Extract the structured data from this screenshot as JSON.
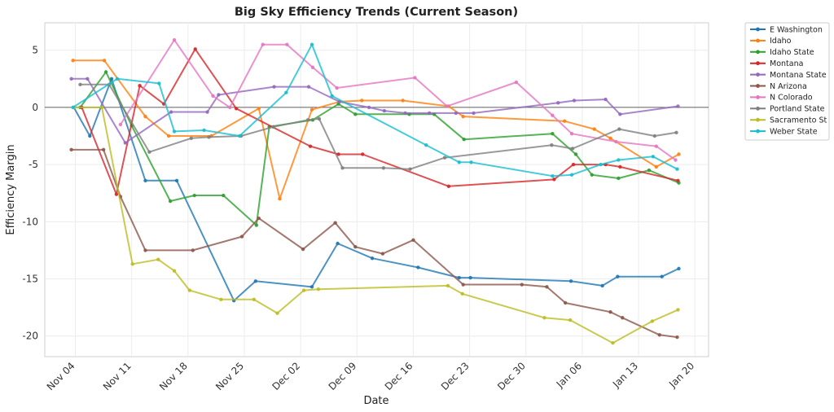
{
  "chart_data": {
    "type": "line",
    "title": "Big Sky Efficiency Trends (Current Season)",
    "xlabel": "Date",
    "ylabel": "Efficiency Margin",
    "x_ticks": [
      {
        "day": 3,
        "label": "Nov 04"
      },
      {
        "day": 10,
        "label": "Nov 11"
      },
      {
        "day": 17,
        "label": "Nov 18"
      },
      {
        "day": 24,
        "label": "Nov 25"
      },
      {
        "day": 31,
        "label": "Dec 02"
      },
      {
        "day": 38,
        "label": "Dec 09"
      },
      {
        "day": 45,
        "label": "Dec 16"
      },
      {
        "day": 52,
        "label": "Dec 23"
      },
      {
        "day": 59,
        "label": "Dec 30"
      },
      {
        "day": 66,
        "label": "Jan 06"
      },
      {
        "day": 73,
        "label": "Jan 13"
      },
      {
        "day": 80,
        "label": "Jan 20"
      }
    ],
    "y_ticks": [
      5,
      0,
      -5,
      -10,
      -15,
      -20
    ],
    "xlim": [
      -0.8,
      81.7
    ],
    "ylim": [
      -21.8,
      7.4
    ],
    "x_unit_note": "x values are days since Nov 01",
    "zero_line": true,
    "grid": true,
    "legend_position": "outside-right",
    "series": [
      {
        "name": "E Washington",
        "color": "#1f77b4",
        "x": [
          2.8,
          4.8,
          7.5,
          11.7,
          15.6,
          22.7,
          25.4,
          32.4,
          35.6,
          39.9,
          45.6,
          50.7,
          52.1,
          64.6,
          68.5,
          70.4,
          75.9,
          78.0
        ],
        "y": [
          0.0,
          -2.5,
          2.5,
          -6.4,
          -6.4,
          -16.9,
          -15.2,
          -15.7,
          -11.9,
          -13.2,
          -14.0,
          -14.9,
          -14.9,
          -15.2,
          -15.6,
          -14.8,
          -14.8,
          -14.1
        ]
      },
      {
        "name": "Idaho",
        "color": "#ff7f0e",
        "x": [
          2.7,
          6.6,
          11.7,
          14.6,
          19.9,
          25.8,
          28.4,
          32.4,
          35.8,
          38.6,
          43.7,
          49.4,
          51.2,
          63.8,
          67.5,
          69.5,
          75.2,
          78.0
        ],
        "y": [
          4.1,
          4.1,
          -0.8,
          -2.5,
          -2.5,
          -0.1,
          -8.0,
          -0.2,
          0.5,
          0.6,
          0.6,
          0.1,
          -0.8,
          -1.2,
          -1.9,
          -2.7,
          -5.2,
          -4.1
        ]
      },
      {
        "name": "Idaho State",
        "color": "#2ca02c",
        "x": [
          3.6,
          6.8,
          10.0,
          14.8,
          17.8,
          21.4,
          25.5,
          27.1,
          32.5,
          35.7,
          37.8,
          44.5,
          47.6,
          51.3,
          62.3,
          65.2,
          67.2,
          70.5,
          74.3,
          78.0
        ],
        "y": [
          0.0,
          3.1,
          -1.6,
          -8.2,
          -7.7,
          -7.7,
          -10.3,
          -1.7,
          -1.1,
          0.3,
          -0.6,
          -0.6,
          -0.6,
          -2.8,
          -2.3,
          -4.1,
          -5.9,
          -6.2,
          -5.5,
          -6.6
        ]
      },
      {
        "name": "Montana",
        "color": "#d62728",
        "x": [
          3.8,
          8.1,
          11.0,
          14.0,
          17.9,
          23.0,
          32.2,
          35.7,
          38.7,
          49.4,
          62.5,
          64.9,
          68.9,
          70.7,
          77.9
        ],
        "y": [
          0.0,
          -7.6,
          1.9,
          0.3,
          5.1,
          -0.1,
          -3.4,
          -4.1,
          -4.1,
          -6.9,
          -6.3,
          -5.0,
          -5.0,
          -5.2,
          -6.4
        ]
      },
      {
        "name": "Montana State",
        "color": "#9467bd",
        "x": [
          2.5,
          4.5,
          9.2,
          14.9,
          19.4,
          20.8,
          27.7,
          32.0,
          35.8,
          39.5,
          41.4,
          44.0,
          47.0,
          50.3,
          52.5,
          63.0,
          65.0,
          68.9,
          70.7,
          77.9
        ],
        "y": [
          2.5,
          2.5,
          -3.1,
          -0.4,
          -0.4,
          1.1,
          1.8,
          1.8,
          0.5,
          0.0,
          -0.3,
          -0.5,
          -0.5,
          -0.5,
          -0.5,
          0.4,
          0.6,
          0.7,
          -0.6,
          0.1
        ]
      },
      {
        "name": "N Arizona",
        "color": "#8c564b",
        "x": [
          2.5,
          6.5,
          8.6,
          11.7,
          17.6,
          23.7,
          25.8,
          31.3,
          35.3,
          37.8,
          41.2,
          45.0,
          51.2,
          58.5,
          61.6,
          63.9,
          69.5,
          71.0,
          75.6,
          77.8
        ],
        "y": [
          -3.7,
          -3.7,
          -7.8,
          -12.5,
          -12.5,
          -11.3,
          -9.7,
          -12.4,
          -10.1,
          -12.2,
          -12.8,
          -11.6,
          -15.5,
          -15.5,
          -15.7,
          -17.1,
          -17.9,
          -18.4,
          -19.9,
          -20.1
        ]
      },
      {
        "name": "N Colorado",
        "color": "#e377c2",
        "x": [
          8.6,
          15.3,
          20.1,
          22.2,
          26.3,
          29.3,
          32.5,
          35.5,
          45.2,
          49.2,
          57.8,
          62.3,
          64.7,
          70.2,
          75.2,
          77.6
        ],
        "y": [
          -1.5,
          5.9,
          1.0,
          0.0,
          5.5,
          5.5,
          3.5,
          1.7,
          2.6,
          0.1,
          2.2,
          -0.7,
          -2.3,
          -3.0,
          -3.4,
          -4.6
        ]
      },
      {
        "name": "Portland State",
        "color": "#7f7f7f",
        "x": [
          3.6,
          7.2,
          12.2,
          17.4,
          19.6,
          23.6,
          27.6,
          31.9,
          33.3,
          36.2,
          41.3,
          44.6,
          48.9,
          62.2,
          64.8,
          70.6,
          75.0,
          77.7
        ],
        "y": [
          2.0,
          2.0,
          -3.9,
          -2.7,
          -2.6,
          -2.5,
          -1.7,
          -1.1,
          -1.0,
          -5.3,
          -5.3,
          -5.4,
          -4.4,
          -3.3,
          -3.6,
          -1.9,
          -2.5,
          -2.2
        ]
      },
      {
        "name": "Sacramento St",
        "color": "#bcbd22",
        "x": [
          2.8,
          6.3,
          10.1,
          13.3,
          15.3,
          17.2,
          21.1,
          25.2,
          28.1,
          31.4,
          33.2,
          49.3,
          51.1,
          61.3,
          64.5,
          69.8,
          74.7,
          77.9
        ],
        "y": [
          0.0,
          0.0,
          -13.7,
          -13.3,
          -14.3,
          -16.0,
          -16.8,
          -16.8,
          -18.0,
          -16.0,
          -15.9,
          -15.6,
          -16.3,
          -18.4,
          -18.6,
          -20.6,
          -18.7,
          -17.7
        ]
      },
      {
        "name": "Weber State",
        "color": "#17becf",
        "x": [
          2.7,
          8.2,
          13.4,
          15.3,
          19.0,
          23.4,
          29.2,
          32.4,
          34.9,
          46.6,
          50.7,
          52.2,
          62.3,
          64.7,
          68.3,
          70.5,
          74.8,
          77.8
        ],
        "y": [
          0.0,
          2.5,
          2.1,
          -2.1,
          -2.0,
          -2.5,
          1.3,
          5.5,
          1.0,
          -3.3,
          -4.8,
          -4.8,
          -6.0,
          -5.9,
          -5.0,
          -4.6,
          -4.3,
          -5.4
        ]
      }
    ]
  }
}
